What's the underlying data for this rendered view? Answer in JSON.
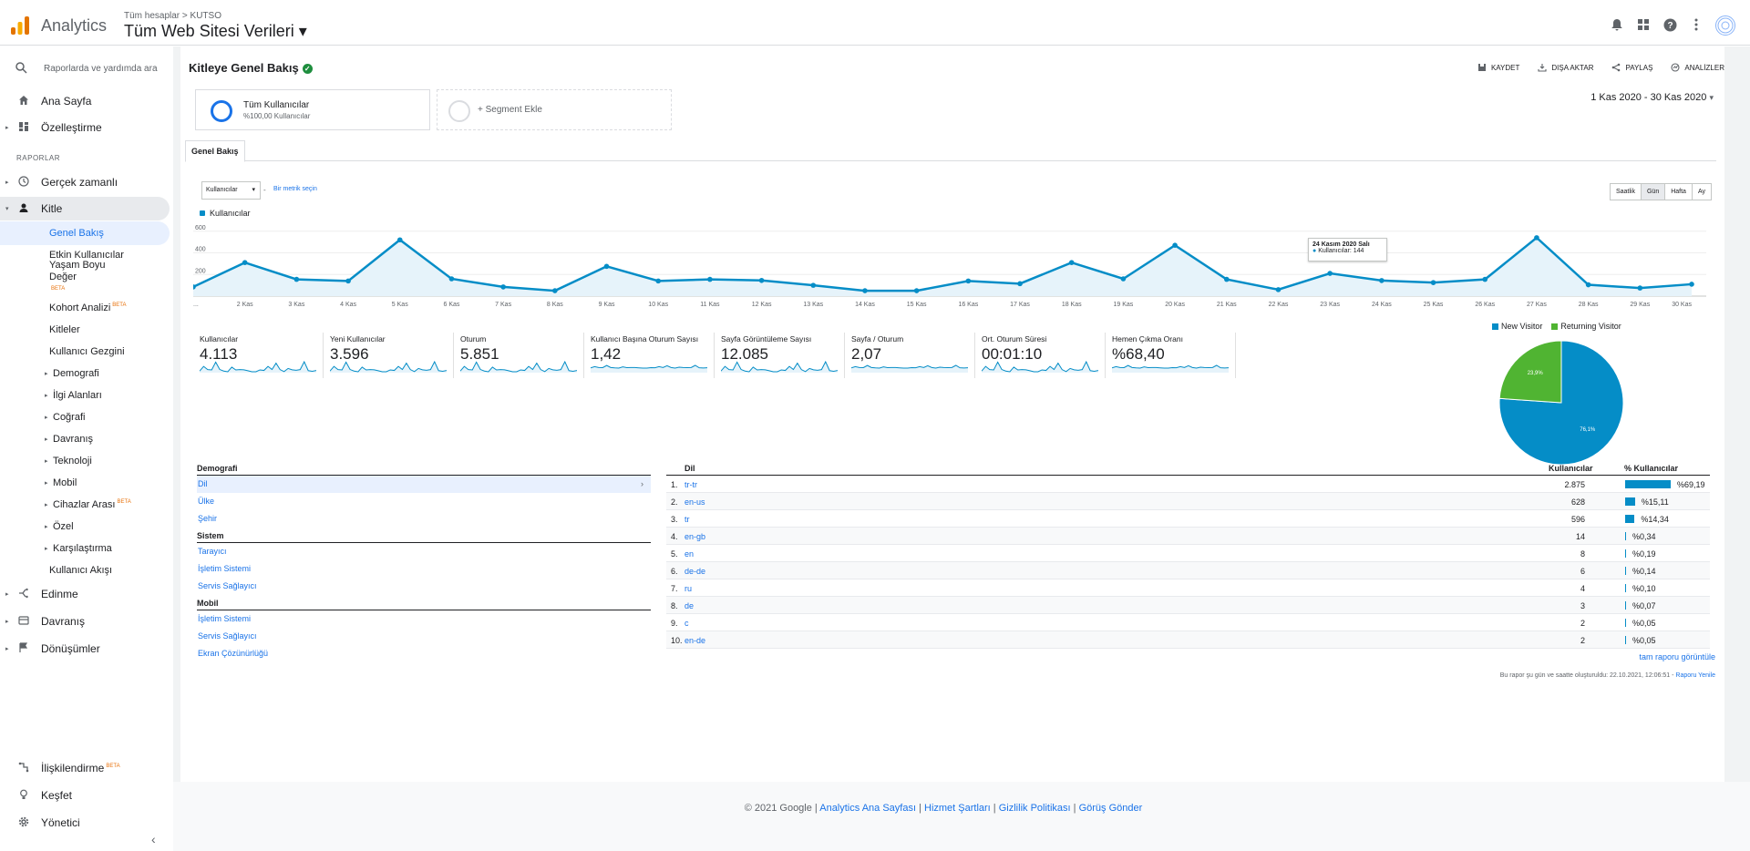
{
  "header": {
    "app_name": "Analytics",
    "breadcrumb": "Tüm hesaplar  >  KUTSO",
    "property": "Tüm Web Sitesi Verileri ▾"
  },
  "sidebar": {
    "search_placeholder": "Raporlarda ve yardımda ara",
    "top_items": [
      {
        "label": "Ana Sayfa",
        "icon": "home-icon"
      },
      {
        "label": "Özelleştirme",
        "icon": "dashboard-icon"
      }
    ],
    "reports_label": "RAPORLAR",
    "report_items": [
      {
        "label": "Gerçek zamanlı",
        "icon": "clock-icon"
      },
      {
        "label": "Kitle",
        "icon": "person-icon"
      }
    ],
    "audience_sub": [
      "Genel Bakış",
      "Etkin Kullanıcılar",
      "Yaşam Boyu Değer",
      "Kohort Analizi",
      "Kitleler",
      "Kullanıcı Gezgini",
      "Demografi",
      "İlgi Alanları",
      "Coğrafi",
      "Davranış",
      "Teknoloji",
      "Mobil",
      "Cihazlar Arası",
      "Özel",
      "Karşılaştırma",
      "Kullanıcı Akışı"
    ],
    "beta_label": "BETA",
    "bottom_reports": [
      {
        "label": "Edinme",
        "icon": "acquisition-icon"
      },
      {
        "label": "Davranış",
        "icon": "behavior-icon"
      },
      {
        "label": "Dönüşümler",
        "icon": "flag-icon"
      }
    ],
    "footer_items": [
      {
        "label": "İlişkilendirme",
        "icon": "attribution-icon"
      },
      {
        "label": "Keşfet",
        "icon": "lightbulb-icon"
      },
      {
        "label": "Yönetici",
        "icon": "gear-icon"
      }
    ]
  },
  "report": {
    "title": "Kitleye Genel Bakış",
    "actions": [
      "KAYDET",
      "DIŞA AKTAR",
      "PAYLAŞ",
      "ANALİZLER"
    ],
    "segment1_title": "Tüm Kullanıcılar",
    "segment1_sub": "%100,00 Kullanıcılar",
    "segment2_title": "+ Segment Ekle",
    "date_range": "1 Kas 2020 - 30 Kas 2020",
    "tab": "Genel Bakış",
    "metric_select": "Kullanıcılar",
    "vs_label": "-",
    "metric_link": "Bir metrik seçin",
    "periods": [
      "Saatlik",
      "Gün",
      "Hafta",
      "Ay"
    ],
    "selected_period": "Gün",
    "series_label": "Kullanıcılar",
    "tooltip_date": "24 Kasım 2020 Salı",
    "tooltip_value": "Kullanıcılar: 144"
  },
  "chart_data": {
    "type": "area",
    "x": [
      "...",
      "2 Kas",
      "3 Kas",
      "4 Kas",
      "5 Kas",
      "6 Kas",
      "7 Kas",
      "8 Kas",
      "9 Kas",
      "10 Kas",
      "11 Kas",
      "12 Kas",
      "13 Kas",
      "14 Kas",
      "15 Kas",
      "16 Kas",
      "17 Kas",
      "18 Kas",
      "19 Kas",
      "20 Kas",
      "21 Kas",
      "22 Kas",
      "23 Kas",
      "24 Kas",
      "25 Kas",
      "26 Kas",
      "27 Kas",
      "28 Kas",
      "29 Kas",
      "30 Kas"
    ],
    "series": [
      {
        "name": "Kullanıcılar",
        "values": [
          85,
          310,
          155,
          140,
          520,
          160,
          85,
          50,
          275,
          140,
          155,
          145,
          100,
          50,
          50,
          140,
          115,
          310,
          160,
          470,
          155,
          60,
          210,
          144,
          125,
          155,
          540,
          105,
          75,
          110
        ]
      }
    ],
    "yticks": [
      "200",
      "400",
      "600"
    ],
    "ylim": [
      0,
      640
    ]
  },
  "kpis": [
    {
      "label": "Kullanıcılar",
      "value": "4.113"
    },
    {
      "label": "Yeni Kullanıcılar",
      "value": "3.596"
    },
    {
      "label": "Oturum",
      "value": "5.851"
    },
    {
      "label": "Kullanıcı Başına Oturum Sayısı",
      "value": "1,42"
    },
    {
      "label": "Sayfa Görüntüleme Sayısı",
      "value": "12.085"
    },
    {
      "label": "Sayfa / Oturum",
      "value": "2,07"
    },
    {
      "label": "Ort. Oturum Süresi",
      "value": "00:01:10"
    },
    {
      "label": "Hemen Çıkma Oranı",
      "value": "%68,40"
    }
  ],
  "pie": {
    "legend": [
      {
        "name": "New Visitor",
        "color": "#058dc7"
      },
      {
        "name": "Returning Visitor",
        "color": "#50b432"
      }
    ],
    "values": [
      76.1,
      23.9
    ],
    "labels": [
      "76,1%",
      "23,9%"
    ]
  },
  "demographics": {
    "groups": [
      {
        "title": "Demografi",
        "items": [
          "Dil",
          "Ülke",
          "Şehir"
        ]
      },
      {
        "title": "Sistem",
        "items": [
          "Tarayıcı",
          "İşletim Sistemi",
          "Servis Sağlayıcı"
        ]
      },
      {
        "title": "Mobil",
        "items": [
          "İşletim Sistemi",
          "Servis Sağlayıcı",
          "Ekran Çözünürlüğü"
        ]
      }
    ],
    "selected": "Dil"
  },
  "lang_table": {
    "headers": [
      "Dil",
      "Kullanıcılar",
      "% Kullanıcılar"
    ],
    "rows": [
      {
        "n": "1.",
        "lang": "tr-tr",
        "users": "2.875",
        "pct": "%69,19",
        "share": 69.19
      },
      {
        "n": "2.",
        "lang": "en-us",
        "users": "628",
        "pct": "%15,11",
        "share": 15.11
      },
      {
        "n": "3.",
        "lang": "tr",
        "users": "596",
        "pct": "%14,34",
        "share": 14.34
      },
      {
        "n": "4.",
        "lang": "en-gb",
        "users": "14",
        "pct": "%0,34",
        "share": 0.34
      },
      {
        "n": "5.",
        "lang": "en",
        "users": "8",
        "pct": "%0,19",
        "share": 0.19
      },
      {
        "n": "6.",
        "lang": "de-de",
        "users": "6",
        "pct": "%0,14",
        "share": 0.14
      },
      {
        "n": "7.",
        "lang": "ru",
        "users": "4",
        "pct": "%0,10",
        "share": 0.1
      },
      {
        "n": "8.",
        "lang": "de",
        "users": "3",
        "pct": "%0,07",
        "share": 0.07
      },
      {
        "n": "9.",
        "lang": "c",
        "users": "2",
        "pct": "%0,05",
        "share": 0.05
      },
      {
        "n": "10.",
        "lang": "en-de",
        "users": "2",
        "pct": "%0,05",
        "share": 0.05
      }
    ],
    "full_report": "tam raporu görüntüle",
    "generated_note": "Bu rapor şu gün ve saatte oluşturuldu: 22.10.2021, 12:06:51 - ",
    "refresh": "Raporu Yenile"
  },
  "footer": {
    "copyright": "© 2021 Google | ",
    "links": [
      "Analytics Ana Sayfası",
      "Hizmet Şartları",
      "Gizlilik Politikası",
      "Görüş Gönder"
    ]
  }
}
